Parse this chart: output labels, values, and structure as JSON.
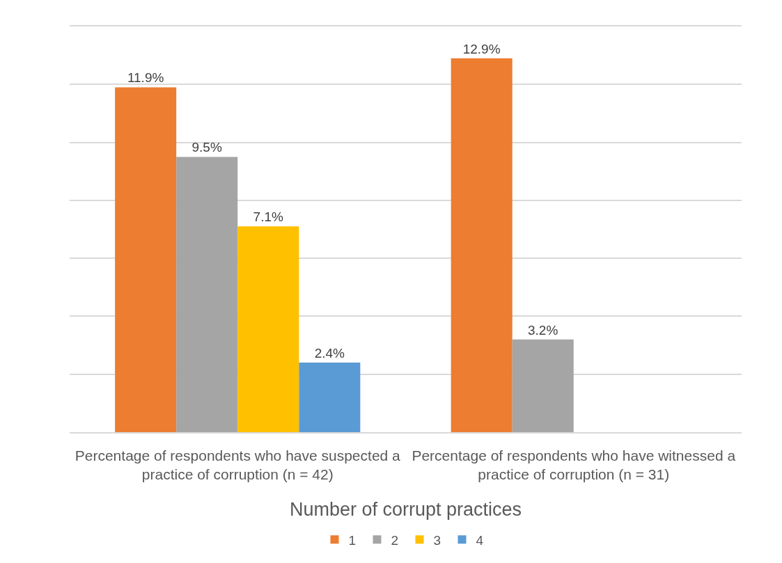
{
  "chart_data": {
    "type": "bar",
    "categories": [
      "Percentage of respondents who have suspected a practice of corruption (n = 42)",
      "Percentage of respondents who have witnessed a practice of corruption (n = 31)"
    ],
    "series": [
      {
        "name": "1",
        "color": "#ed7d31",
        "values": [
          11.9,
          12.9
        ],
        "value_labels": [
          "11.9%",
          "12.9%"
        ]
      },
      {
        "name": "2",
        "color": "#a5a5a5",
        "values": [
          9.5,
          3.2
        ],
        "value_labels": [
          "9.5%",
          "3.2%"
        ]
      },
      {
        "name": "3",
        "color": "#ffc000",
        "values": [
          7.1,
          null
        ],
        "value_labels": [
          "7.1%",
          null
        ]
      },
      {
        "name": "4",
        "color": "#5b9bd5",
        "values": [
          2.4,
          null
        ],
        "value_labels": [
          "2.4%",
          null
        ]
      }
    ],
    "xlabel": "Number of corrupt practices",
    "ylim": [
      0,
      14
    ],
    "yticks": [
      {
        "value": 0,
        "label": null
      },
      {
        "value": 2,
        "label": null
      },
      {
        "value": 4,
        "label": null
      },
      {
        "value": 6,
        "label": null
      },
      {
        "value": 8,
        "label": null
      },
      {
        "value": 10,
        "label": null
      },
      {
        "value": 12,
        "label": null
      },
      {
        "value": 14,
        "label": null
      }
    ],
    "tick_labels": "x",
    "grid": "y",
    "legend": "bottom"
  }
}
